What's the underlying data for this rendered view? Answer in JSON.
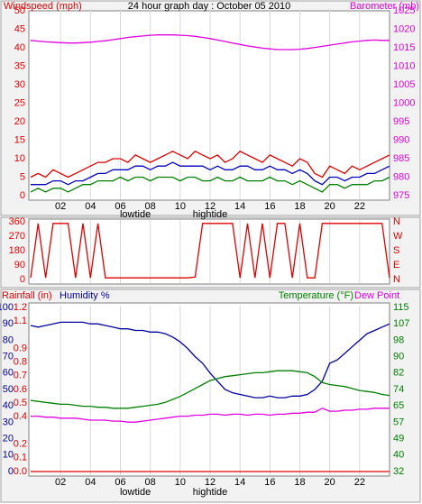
{
  "chart_data": [
    {
      "type": "line",
      "title": "24 hour graph day : October 05 2010",
      "y_label": "Windspeed (mph)",
      "y_label_color": "#e00000",
      "y2_label": "Barometer (mb)",
      "y2_label_color": "#e000e0",
      "x": [
        0,
        0.5,
        1,
        1.5,
        2,
        2.5,
        3,
        3.5,
        4,
        4.5,
        5,
        5.5,
        6,
        6.5,
        7,
        7.5,
        8,
        8.5,
        9,
        9.5,
        10,
        10.5,
        11,
        11.5,
        12,
        12.5,
        13,
        13.5,
        14,
        14.5,
        15,
        15.5,
        16,
        16.5,
        17,
        17.5,
        18,
        18.5,
        19,
        19.5,
        20,
        20.5,
        21,
        21.5,
        22,
        22.5,
        23,
        23.5,
        24
      ],
      "xlim": [
        0,
        24
      ],
      "xticks": [
        {
          "value": 2,
          "label": "02"
        },
        {
          "value": 4,
          "label": "04"
        },
        {
          "value": 6,
          "label": "06"
        },
        {
          "value": 8,
          "label": "08"
        },
        {
          "value": 10,
          "label": "10"
        },
        {
          "value": 12,
          "label": "12"
        },
        {
          "value": 14,
          "label": "14"
        },
        {
          "value": 16,
          "label": "16"
        },
        {
          "value": 18,
          "label": "18"
        },
        {
          "value": 20,
          "label": "20"
        },
        {
          "value": 22,
          "label": "22"
        }
      ],
      "annotations": [
        {
          "text": "lowtide",
          "x": 7
        },
        {
          "text": "hightide",
          "x": 12
        }
      ],
      "ylim": [
        0,
        50
      ],
      "yticks": [
        0,
        5,
        10,
        15,
        20,
        25,
        30,
        35,
        40,
        45,
        50
      ],
      "ytick_color": "#e00000",
      "y2lim": [
        975,
        1025
      ],
      "y2ticks": [
        975,
        980,
        985,
        990,
        995,
        1000,
        1005,
        1010,
        1015,
        1020,
        1025
      ],
      "y2tick_color": "#e000e0",
      "series": [
        {
          "color": "#e00000",
          "values": [
            5,
            6,
            5,
            7,
            6,
            5,
            6,
            7,
            8,
            9,
            9,
            10,
            10,
            9,
            11,
            10,
            9,
            10,
            11,
            12,
            11,
            10,
            12,
            11,
            10,
            11,
            9,
            10,
            12,
            11,
            10,
            9,
            11,
            10,
            9,
            8,
            10,
            9,
            6,
            5,
            8,
            7,
            6,
            8,
            7,
            8,
            9,
            10,
            11
          ]
        },
        {
          "color": "#0000c0",
          "values": [
            3,
            3,
            3,
            4,
            4,
            3,
            4,
            4,
            5,
            6,
            6,
            7,
            7,
            7,
            8,
            8,
            7,
            8,
            8,
            9,
            8,
            8,
            8,
            8,
            7,
            8,
            7,
            7,
            8,
            8,
            7,
            7,
            8,
            7,
            7,
            6,
            7,
            6,
            4,
            3,
            5,
            5,
            4,
            5,
            5,
            6,
            6,
            7,
            8
          ]
        },
        {
          "color": "#008000",
          "values": [
            1,
            2,
            1,
            2,
            2,
            1,
            2,
            3,
            3,
            4,
            4,
            4,
            5,
            4,
            5,
            5,
            4,
            5,
            5,
            5,
            4,
            5,
            5,
            4,
            4,
            5,
            4,
            4,
            5,
            4,
            4,
            4,
            5,
            4,
            4,
            3,
            4,
            3,
            2,
            1,
            3,
            3,
            2,
            3,
            3,
            3,
            4,
            4,
            5
          ]
        },
        {
          "color": "#e000e0",
          "axis": "y2",
          "values": [
            1017,
            1016.8,
            1016.6,
            1016.5,
            1016.4,
            1016.3,
            1016.3,
            1016.4,
            1016.5,
            1016.7,
            1016.9,
            1017.2,
            1017.5,
            1017.8,
            1018,
            1018.2,
            1018.4,
            1018.5,
            1018.5,
            1018.5,
            1018.4,
            1018.3,
            1018.1,
            1017.8,
            1017.5,
            1017.1,
            1016.7,
            1016.3,
            1015.9,
            1015.5,
            1015.2,
            1014.9,
            1014.7,
            1014.5,
            1014.5,
            1014.5,
            1014.6,
            1014.8,
            1015.1,
            1015.4,
            1015.7,
            1016,
            1016.3,
            1016.6,
            1016.8,
            1017,
            1017.1,
            1017,
            1017
          ]
        }
      ]
    },
    {
      "type": "line",
      "x": [
        0,
        0.5,
        1,
        1.5,
        2,
        2.5,
        3,
        3.5,
        4,
        4.5,
        5,
        5.5,
        6,
        6.5,
        7,
        7.5,
        8,
        8.5,
        9,
        9.5,
        10,
        10.5,
        11,
        11.5,
        12,
        12.5,
        13,
        13.5,
        14,
        14.5,
        15,
        15.5,
        16,
        16.5,
        17,
        17.5,
        18,
        18.5,
        19,
        19.5,
        20,
        20.5,
        21,
        21.5,
        22,
        22.5,
        23,
        23.5,
        24
      ],
      "xlim": [
        0,
        24
      ],
      "ylim": [
        0,
        360
      ],
      "yticks": [
        0,
        90,
        180,
        270,
        360
      ],
      "ytick_color": "#e00000",
      "y2lim": [
        0,
        360
      ],
      "y2ticks": [
        {
          "value": 0,
          "label": "N"
        },
        {
          "value": 90,
          "label": "E"
        },
        {
          "value": 180,
          "label": "S"
        },
        {
          "value": 270,
          "label": "W"
        },
        {
          "value": 360,
          "label": "N"
        }
      ],
      "y2tick_color": "#e00000",
      "series": [
        {
          "color": "#e00000",
          "values": [
            10,
            350,
            10,
            350,
            350,
            350,
            10,
            350,
            10,
            350,
            10,
            10,
            10,
            10,
            10,
            10,
            10,
            10,
            10,
            10,
            10,
            10,
            15,
            350,
            350,
            350,
            350,
            350,
            10,
            350,
            10,
            350,
            10,
            350,
            350,
            10,
            350,
            10,
            10,
            350,
            350,
            350,
            350,
            350,
            350,
            350,
            350,
            350,
            10
          ]
        }
      ]
    },
    {
      "type": "line",
      "x": [
        0,
        0.5,
        1,
        1.5,
        2,
        2.5,
        3,
        3.5,
        4,
        4.5,
        5,
        5.5,
        6,
        6.5,
        7,
        7.5,
        8,
        8.5,
        9,
        9.5,
        10,
        10.5,
        11,
        11.5,
        12,
        12.5,
        13,
        13.5,
        14,
        14.5,
        15,
        15.5,
        16,
        16.5,
        17,
        17.5,
        18,
        18.5,
        19,
        19.5,
        20,
        20.5,
        21,
        21.5,
        22,
        22.5,
        23,
        23.5,
        24
      ],
      "xlim": [
        0,
        24
      ],
      "xticks": [
        {
          "value": 2,
          "label": "02"
        },
        {
          "value": 4,
          "label": "04"
        },
        {
          "value": 6,
          "label": "06"
        },
        {
          "value": 8,
          "label": "08"
        },
        {
          "value": 10,
          "label": "10"
        },
        {
          "value": 12,
          "label": "12"
        },
        {
          "value": 14,
          "label": "14"
        },
        {
          "value": 16,
          "label": "16"
        },
        {
          "value": 18,
          "label": "18"
        },
        {
          "value": 20,
          "label": "20"
        },
        {
          "value": 22,
          "label": "22"
        }
      ],
      "annotations": [
        {
          "text": "lowtide",
          "x": 7
        },
        {
          "text": "hightide",
          "x": 12
        }
      ],
      "ylim": [
        0,
        100
      ],
      "yticks": [
        0,
        10,
        20,
        30,
        40,
        50,
        60,
        70,
        80,
        90,
        100
      ],
      "ytick_color": "#0000a0",
      "y3lim": [
        0,
        1.2
      ],
      "y3ticks": [
        {
          "value": 0,
          "label": "0.0"
        },
        0.1,
        0.2,
        0.4,
        0.5,
        0.6,
        0.7,
        0.8,
        0.9,
        1.1,
        1.2
      ],
      "y3tick_color": "#e00000",
      "y2lim": [
        32,
        115
      ],
      "y2ticks": [
        32,
        {
          "value": 40.3,
          "label": "40"
        },
        {
          "value": 48.6,
          "label": "49"
        },
        {
          "value": 56.9,
          "label": "57"
        },
        {
          "value": 65.2,
          "label": "65"
        },
        {
          "value": 73.5,
          "label": "74"
        },
        {
          "value": 81.8,
          "label": "82"
        },
        {
          "value": 90.1,
          "label": "90"
        },
        {
          "value": 98.4,
          "label": "98"
        },
        {
          "value": 106.7,
          "label": "107"
        },
        115
      ],
      "y2tick_color": "#008000",
      "series": [
        {
          "name": "Rainfall (in)",
          "color": "#e00000",
          "axis": "y3",
          "values": [
            0,
            0,
            0,
            0,
            0,
            0,
            0,
            0,
            0,
            0,
            0,
            0,
            0,
            0,
            0,
            0,
            0,
            0,
            0,
            0,
            0,
            0,
            0,
            0,
            0,
            0,
            0,
            0,
            0,
            0,
            0,
            0,
            0,
            0,
            0,
            0,
            0,
            0,
            0,
            0,
            0,
            0,
            0,
            0,
            0,
            0,
            0,
            0,
            0
          ]
        },
        {
          "name": "Humidity %",
          "color": "#0000a0",
          "values": [
            89,
            88,
            89,
            90,
            91,
            91,
            91,
            91,
            90,
            90,
            89,
            88,
            87,
            87,
            86,
            86,
            85,
            85,
            84,
            82,
            79,
            75,
            70,
            66,
            60,
            55,
            50,
            48,
            47,
            46,
            45,
            45,
            46,
            45,
            45,
            46,
            46,
            47,
            50,
            55,
            66,
            68,
            72,
            76,
            80,
            84,
            86,
            88,
            90
          ]
        },
        {
          "name": "Temperature (°F)",
          "color": "#008000",
          "axis": "y2",
          "values": [
            68,
            67.5,
            67,
            66.5,
            66,
            66,
            65.5,
            65,
            65,
            64.5,
            64.5,
            64,
            64,
            64,
            64.5,
            65,
            65.5,
            66,
            67,
            68.5,
            70,
            72,
            74,
            76,
            78,
            79,
            80,
            80.5,
            81,
            81.5,
            82,
            82,
            82.5,
            83,
            83,
            83,
            82.5,
            82,
            80,
            77,
            76,
            75.5,
            75,
            74,
            73,
            72.5,
            72,
            71,
            70.5
          ]
        },
        {
          "name": "Dew Point",
          "color": "#e000e0",
          "axis": "y2",
          "values": [
            60,
            60,
            59.5,
            59.5,
            59,
            59,
            59,
            58.5,
            58,
            58,
            58,
            57.5,
            57.5,
            57,
            57,
            57.5,
            58,
            58.5,
            59,
            59.5,
            60,
            60,
            60.5,
            60.5,
            61,
            61,
            60.5,
            61,
            61,
            60.5,
            61,
            61,
            60.5,
            61,
            61,
            61.5,
            61.5,
            62,
            62,
            64,
            62.5,
            62.5,
            63,
            63,
            63.5,
            63.5,
            64,
            64,
            64
          ]
        }
      ]
    }
  ]
}
